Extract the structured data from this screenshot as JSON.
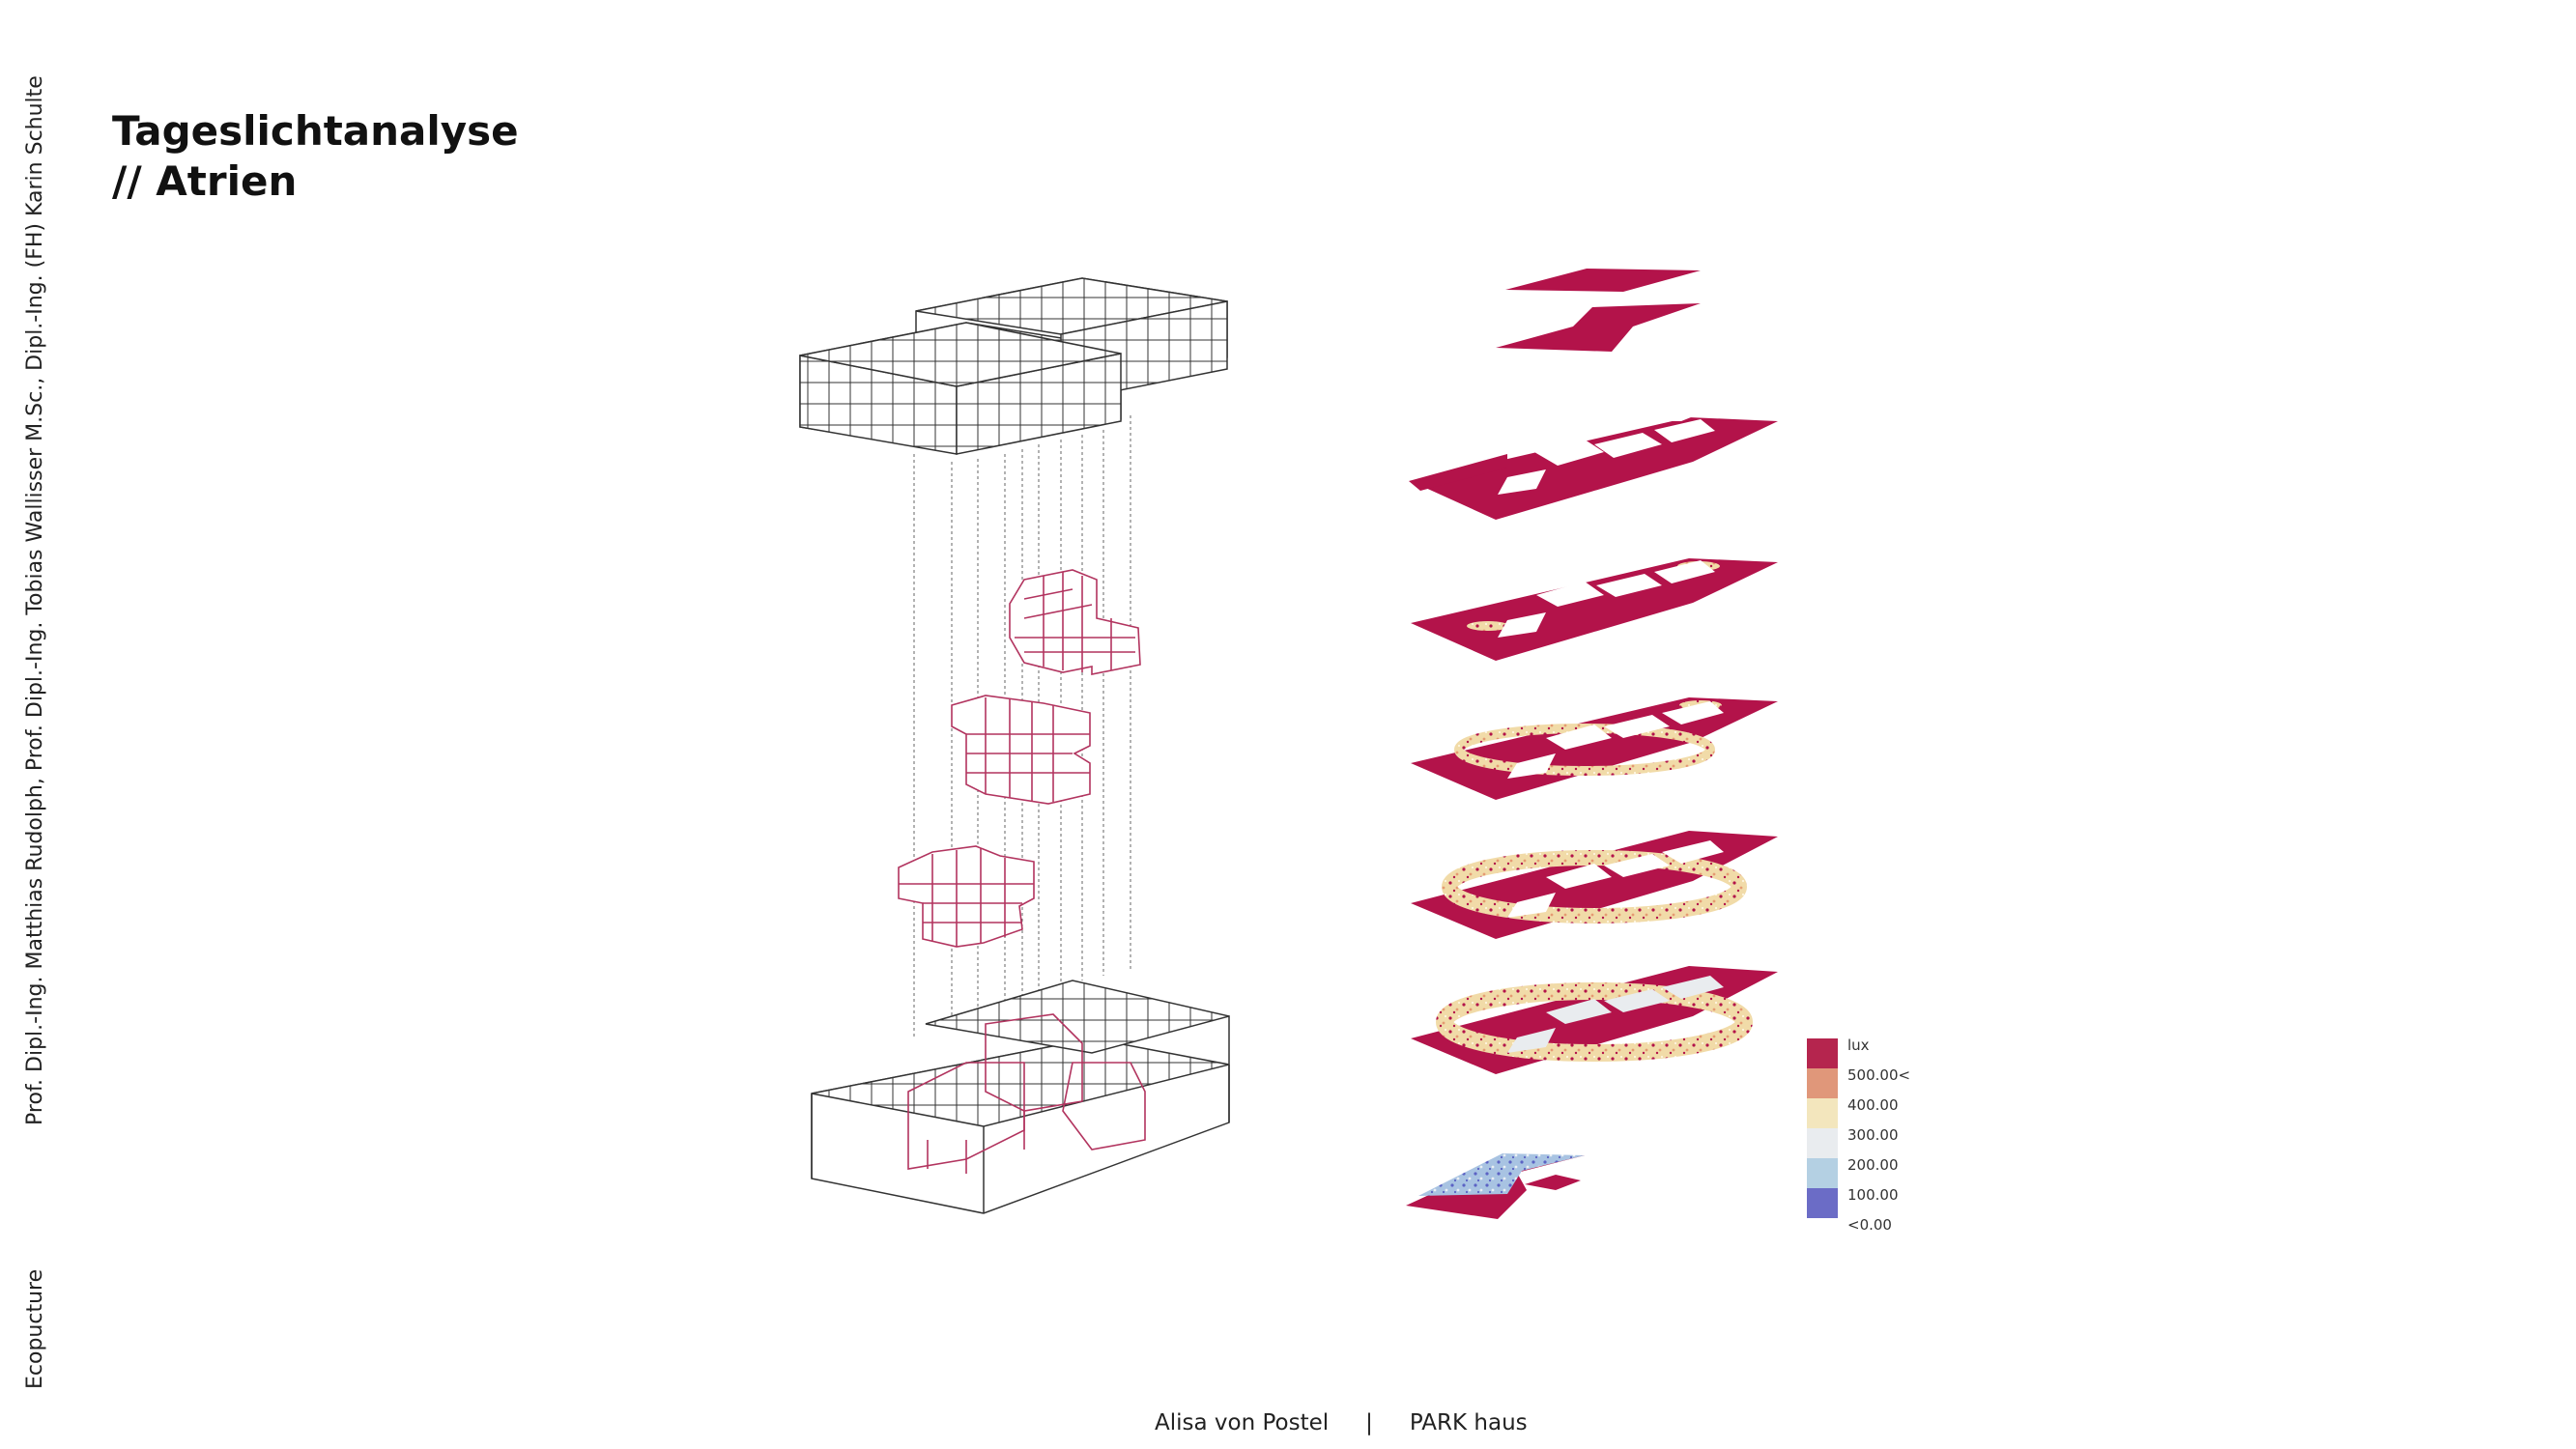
{
  "side": {
    "credits": "Prof. Dipl.-Ing. Matthias Rudolph, Prof. Dipl.-Ing. Tobias Wallisser M.Sc., Dipl.-Ing. (FH) Karin Schulte",
    "project": "Ecopucture"
  },
  "title": {
    "line1": "Tageslichtanalyse",
    "line2": "// Atrien"
  },
  "footer": {
    "author": "Alisa von Postel",
    "separator": "|",
    "project": "PARK haus"
  },
  "legend": {
    "unit": "lux",
    "items": [
      {
        "label": "500.00<",
        "color": "#e0977a"
      },
      {
        "label": "400.00",
        "color": "#f3e6bd"
      },
      {
        "label": "300.00",
        "color": "#e9ecef"
      },
      {
        "label": "200.00",
        "color": "#b4d0e3"
      },
      {
        "label": "100.00",
        "color": "#6b6cc6"
      },
      {
        "label": "<0.00",
        "color": ""
      }
    ],
    "unit_color": "#b5254e"
  },
  "colors": {
    "plan_red": "#b3134a",
    "module_pink": "#b2345f",
    "line_dark": "#333333"
  }
}
